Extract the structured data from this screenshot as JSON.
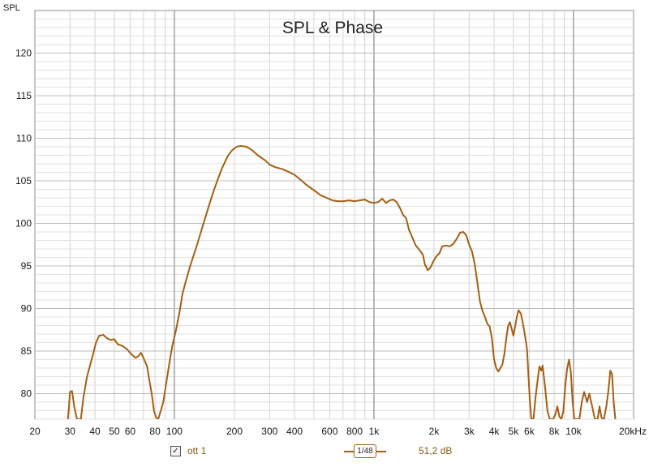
{
  "chart_data": {
    "type": "line",
    "title": "SPL & Phase",
    "ylabel": "SPL",
    "xlabel": "",
    "x_scale": "log",
    "xlim": [
      20,
      20000
    ],
    "ylim": [
      77,
      125
    ],
    "y_ticks": [
      80,
      85,
      90,
      95,
      100,
      105,
      110,
      115,
      120
    ],
    "x_ticks": [
      {
        "value": 20,
        "label": "20"
      },
      {
        "value": 30,
        "label": "30"
      },
      {
        "value": 40,
        "label": "40"
      },
      {
        "value": 50,
        "label": "50"
      },
      {
        "value": 60,
        "label": "60"
      },
      {
        "value": 80,
        "label": "80"
      },
      {
        "value": 100,
        "label": "100"
      },
      {
        "value": 200,
        "label": "200"
      },
      {
        "value": 300,
        "label": "300"
      },
      {
        "value": 400,
        "label": "400"
      },
      {
        "value": 600,
        "label": "600"
      },
      {
        "value": 800,
        "label": "800"
      },
      {
        "value": 1000,
        "label": "1k"
      },
      {
        "value": 2000,
        "label": "2k"
      },
      {
        "value": 3000,
        "label": "3k"
      },
      {
        "value": 4000,
        "label": "4k"
      },
      {
        "value": 5000,
        "label": "5k"
      },
      {
        "value": 6000,
        "label": "6k"
      },
      {
        "value": 8000,
        "label": "8k"
      },
      {
        "value": 10000,
        "label": "10k"
      },
      {
        "value": 20000,
        "label": "20kHz"
      }
    ],
    "grid": true,
    "series": [
      {
        "name": "ott 1",
        "color": "#a65e12",
        "points": [
          [
            29.3,
            77
          ],
          [
            30,
            80.2
          ],
          [
            30.7,
            80.3
          ],
          [
            31.5,
            78.5
          ],
          [
            32.5,
            77
          ],
          [
            34,
            77
          ],
          [
            35,
            79.5
          ],
          [
            36.5,
            82
          ],
          [
            38.5,
            84
          ],
          [
            40.5,
            86
          ],
          [
            42,
            86.8
          ],
          [
            44,
            86.9
          ],
          [
            46,
            86.5
          ],
          [
            48,
            86.3
          ],
          [
            50,
            86.4
          ],
          [
            52,
            85.8
          ],
          [
            55,
            85.6
          ],
          [
            58,
            85.2
          ],
          [
            61,
            84.6
          ],
          [
            64,
            84.2
          ],
          [
            66,
            84.4
          ],
          [
            68,
            84.8
          ],
          [
            70,
            84.2
          ],
          [
            73,
            83.2
          ],
          [
            75,
            81.5
          ],
          [
            77,
            80
          ],
          [
            79,
            78
          ],
          [
            81,
            77.2
          ],
          [
            83,
            77
          ],
          [
            85,
            77.8
          ],
          [
            88,
            79
          ],
          [
            91,
            81.2
          ],
          [
            95,
            84
          ],
          [
            98,
            85.8
          ],
          [
            102,
            87.5
          ],
          [
            106,
            89.5
          ],
          [
            110,
            91.8
          ],
          [
            115,
            93.5
          ],
          [
            120,
            95
          ],
          [
            130,
            97.5
          ],
          [
            140,
            100
          ],
          [
            150,
            102.3
          ],
          [
            160,
            104.3
          ],
          [
            172,
            106.3
          ],
          [
            185,
            107.9
          ],
          [
            195,
            108.6
          ],
          [
            205,
            109
          ],
          [
            215,
            109.1
          ],
          [
            230,
            109
          ],
          [
            245,
            108.6
          ],
          [
            262,
            108
          ],
          [
            285,
            107.4
          ],
          [
            300,
            106.9
          ],
          [
            320,
            106.6
          ],
          [
            345,
            106.4
          ],
          [
            370,
            106.1
          ],
          [
            400,
            105.7
          ],
          [
            430,
            105.1
          ],
          [
            460,
            104.5
          ],
          [
            500,
            103.9
          ],
          [
            540,
            103.3
          ],
          [
            580,
            103
          ],
          [
            620,
            102.7
          ],
          [
            660,
            102.6
          ],
          [
            700,
            102.6
          ],
          [
            750,
            102.7
          ],
          [
            800,
            102.6
          ],
          [
            850,
            102.7
          ],
          [
            900,
            102.8
          ],
          [
            950,
            102.5
          ],
          [
            1000,
            102.4
          ],
          [
            1050,
            102.5
          ],
          [
            1100,
            102.9
          ],
          [
            1150,
            102.4
          ],
          [
            1200,
            102.7
          ],
          [
            1250,
            102.8
          ],
          [
            1300,
            102.5
          ],
          [
            1350,
            101.8
          ],
          [
            1400,
            101
          ],
          [
            1450,
            100.6
          ],
          [
            1500,
            99.2
          ],
          [
            1560,
            98.3
          ],
          [
            1620,
            97.4
          ],
          [
            1700,
            96.8
          ],
          [
            1760,
            96.3
          ],
          [
            1800,
            95.2
          ],
          [
            1860,
            94.5
          ],
          [
            1920,
            94.8
          ],
          [
            1980,
            95.5
          ],
          [
            2050,
            96.1
          ],
          [
            2130,
            96.5
          ],
          [
            2200,
            97.3
          ],
          [
            2300,
            97.4
          ],
          [
            2400,
            97.3
          ],
          [
            2500,
            97.6
          ],
          [
            2600,
            98.2
          ],
          [
            2700,
            98.9
          ],
          [
            2800,
            99
          ],
          [
            2900,
            98.6
          ],
          [
            3000,
            97.5
          ],
          [
            3100,
            96.7
          ],
          [
            3200,
            95.2
          ],
          [
            3300,
            93
          ],
          [
            3400,
            90.8
          ],
          [
            3500,
            89.7
          ],
          [
            3600,
            89
          ],
          [
            3700,
            88.2
          ],
          [
            3800,
            87.9
          ],
          [
            3900,
            86.5
          ],
          [
            4000,
            84
          ],
          [
            4100,
            83
          ],
          [
            4200,
            82.6
          ],
          [
            4300,
            83
          ],
          [
            4400,
            83.4
          ],
          [
            4500,
            84.6
          ],
          [
            4600,
            86.4
          ],
          [
            4700,
            87.9
          ],
          [
            4800,
            88.4
          ],
          [
            4900,
            87.6
          ],
          [
            5000,
            86.8
          ],
          [
            5100,
            87.9
          ],
          [
            5200,
            89
          ],
          [
            5300,
            89.8
          ],
          [
            5450,
            89.4
          ],
          [
            5550,
            88.5
          ],
          [
            5700,
            87
          ],
          [
            5850,
            85.2
          ],
          [
            5950,
            82
          ],
          [
            6050,
            79
          ],
          [
            6150,
            77
          ],
          [
            6300,
            77
          ],
          [
            6450,
            79.5
          ],
          [
            6600,
            81.5
          ],
          [
            6750,
            83.2
          ],
          [
            6900,
            82.7
          ],
          [
            7000,
            83.3
          ],
          [
            7200,
            80.8
          ],
          [
            7400,
            78
          ],
          [
            7600,
            77
          ],
          [
            7900,
            77
          ],
          [
            8100,
            77.5
          ],
          [
            8300,
            78.5
          ],
          [
            8500,
            77.3
          ],
          [
            8700,
            77
          ],
          [
            8900,
            78
          ],
          [
            9100,
            81
          ],
          [
            9300,
            83
          ],
          [
            9500,
            84
          ],
          [
            9700,
            82.5
          ],
          [
            9900,
            79
          ],
          [
            10100,
            77
          ],
          [
            10700,
            77
          ],
          [
            11000,
            79
          ],
          [
            11300,
            80.2
          ],
          [
            11700,
            79
          ],
          [
            12000,
            80
          ],
          [
            12400,
            78.5
          ],
          [
            12800,
            77
          ],
          [
            13200,
            77
          ],
          [
            13500,
            78.5
          ],
          [
            13800,
            77.2
          ],
          [
            14200,
            77
          ],
          [
            14600,
            78.5
          ],
          [
            14900,
            80
          ],
          [
            15300,
            82.7
          ],
          [
            15600,
            82.3
          ],
          [
            15900,
            79
          ],
          [
            16200,
            77
          ]
        ]
      }
    ]
  },
  "legend": {
    "series_name": "ott 1",
    "checkbox_mark": "✓",
    "smoothing_label": "1/48",
    "value_label": "51,2 dB"
  }
}
